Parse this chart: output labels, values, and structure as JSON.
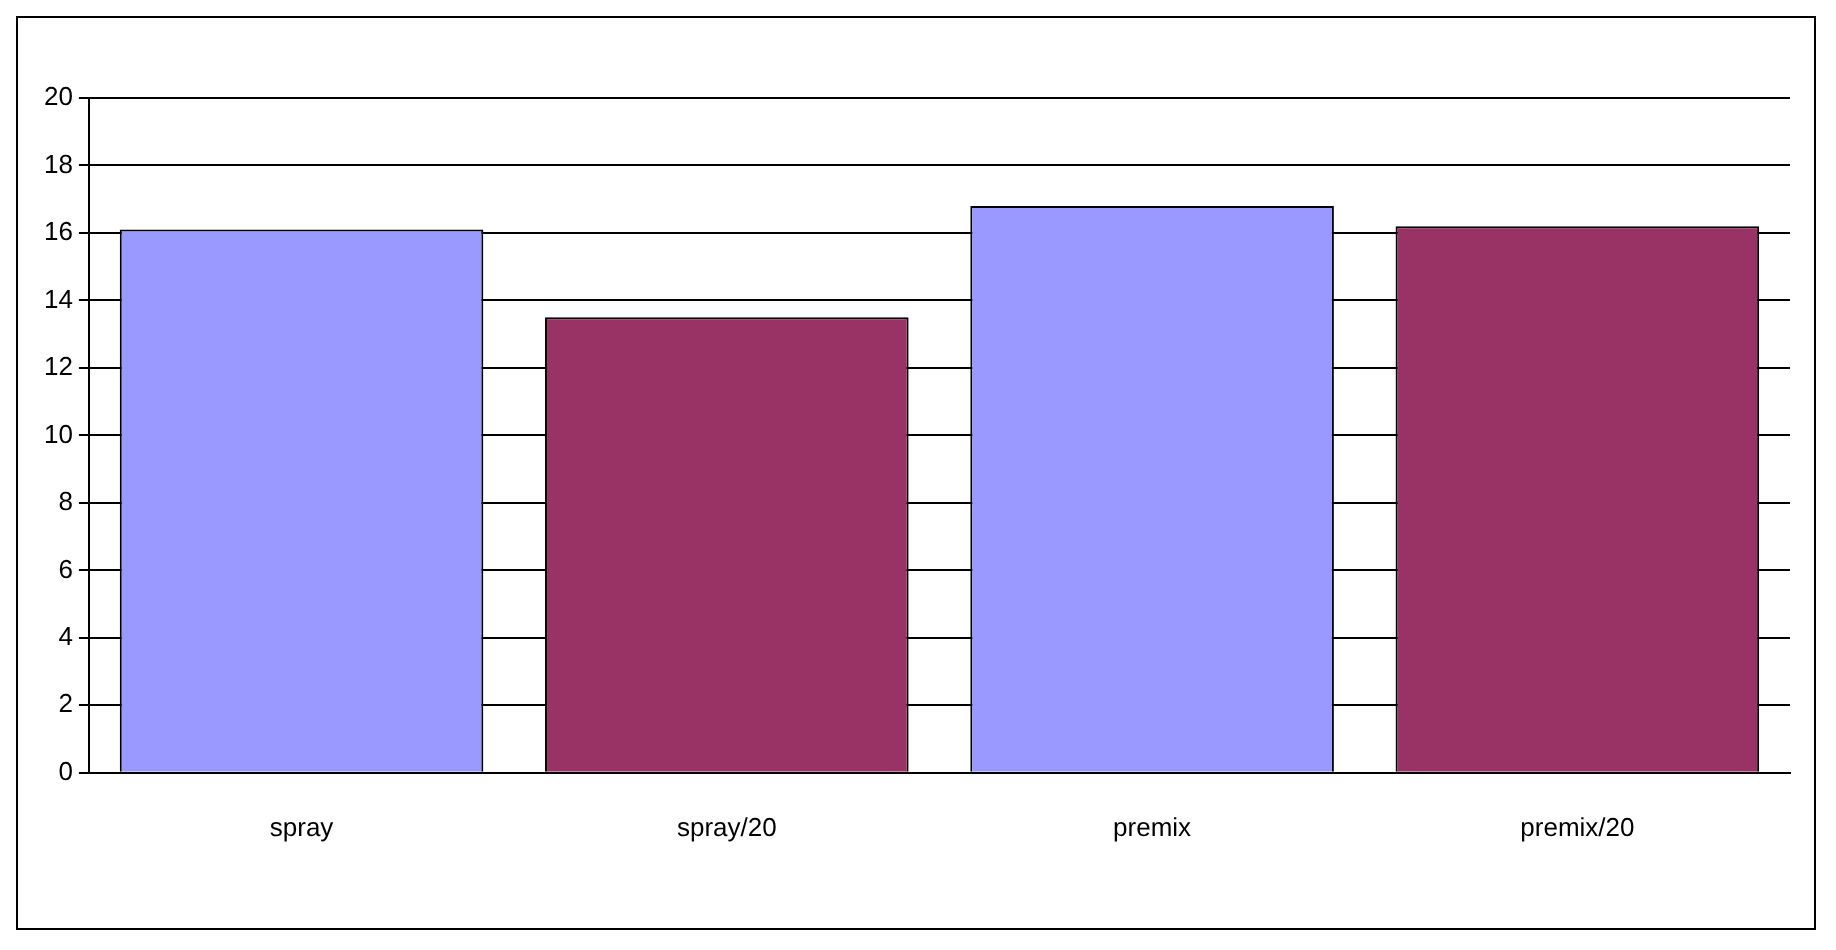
{
  "chart_data": {
    "type": "bar",
    "categories": [
      "spray",
      "spray/20",
      "premix",
      "premix/20"
    ],
    "values": [
      16.1,
      13.5,
      16.8,
      16.2
    ],
    "colors": [
      "#9999ff",
      "#993366",
      "#9999ff",
      "#993366"
    ],
    "ylim": [
      0,
      20
    ],
    "yticks": [
      0,
      2,
      4,
      6,
      8,
      10,
      12,
      14,
      16,
      18,
      20
    ],
    "grid": "y",
    "legend": false
  }
}
